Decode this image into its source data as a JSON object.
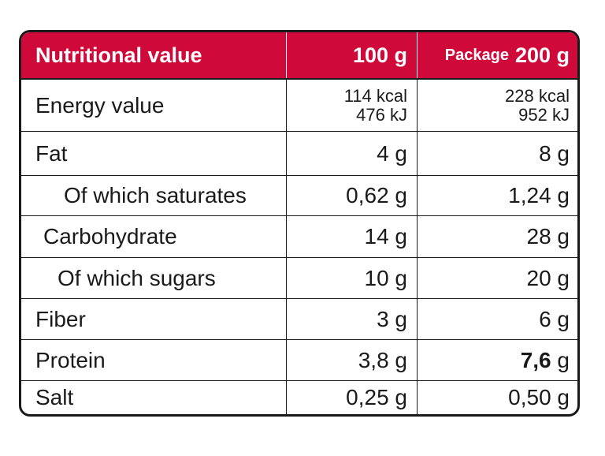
{
  "header": {
    "title": "Nutritional value",
    "col_100g": "100 g",
    "col_package_prefix": "Package",
    "col_package_amount": "200 g"
  },
  "rows": [
    {
      "label": "Energy value",
      "per100": [
        "114 kcal",
        "476 kJ"
      ],
      "package": [
        "228 kcal",
        "952 kJ"
      ]
    },
    {
      "label": "Fat",
      "per100": "4 g",
      "package": "8 g"
    },
    {
      "label": "Of which saturates",
      "per100": "0,62 g",
      "package": "1,24 g"
    },
    {
      "label": "Carbohydrate",
      "per100": "14 g",
      "package": "28 g"
    },
    {
      "label": "Of which sugars",
      "per100": "10 g",
      "package": "20 g"
    },
    {
      "label": "Fiber",
      "per100": "3 g",
      "package": "6 g"
    },
    {
      "label": "Protein",
      "per100": "3,8 g",
      "package_bold": "7,6",
      "package_unit": "g"
    },
    {
      "label": "Salt",
      "per100": "0,25 g",
      "package": "0,50 g"
    }
  ],
  "colors": {
    "header_bg": "#cf0a3a",
    "header_text": "#ffffff",
    "border": "#1a1a1a"
  }
}
